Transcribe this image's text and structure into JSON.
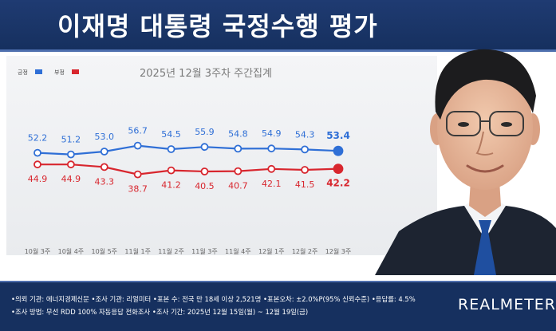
{
  "header": {
    "title": "이재명 대통령 국정수행 평가"
  },
  "chart_data": {
    "type": "line",
    "title": "2025년 12월 3주차 주간집계",
    "categories": [
      "10월 3주",
      "10월 4주",
      "10월 5주",
      "11월 1주",
      "11월 2주",
      "11월 3주",
      "11월 4주",
      "12월 1주",
      "12월 2주",
      "12월 3주"
    ],
    "series": [
      {
        "name": "긍정",
        "color": "#2f6fd6",
        "values": [
          52.2,
          51.2,
          53.0,
          56.7,
          54.5,
          55.9,
          54.8,
          54.9,
          54.3,
          53.4
        ]
      },
      {
        "name": "부정",
        "color": "#d8262e",
        "values": [
          44.9,
          44.9,
          43.3,
          38.7,
          41.2,
          40.5,
          40.7,
          42.1,
          41.5,
          42.2
        ]
      }
    ],
    "legend": "top-left",
    "grid": false
  },
  "footer": {
    "line1": "•의뢰 기관: 에너지경제신문 •조사 기관: 리얼미터 •표본 수: 전국 만 18세 이상 2,521명 •표본오차: ±2.0%P(95% 신뢰수준) •응답률: 4.5%",
    "line2": "•조사 방법: 무선 RDD 100% 자동응답 전화조사 •조사 기간: 2025년 12월 15일(월) ~ 12월 19일(금)",
    "brand": "REALMETER"
  },
  "colors": {
    "header_bg": "#16305f",
    "positive": "#2f6fd6",
    "negative": "#d8262e"
  }
}
